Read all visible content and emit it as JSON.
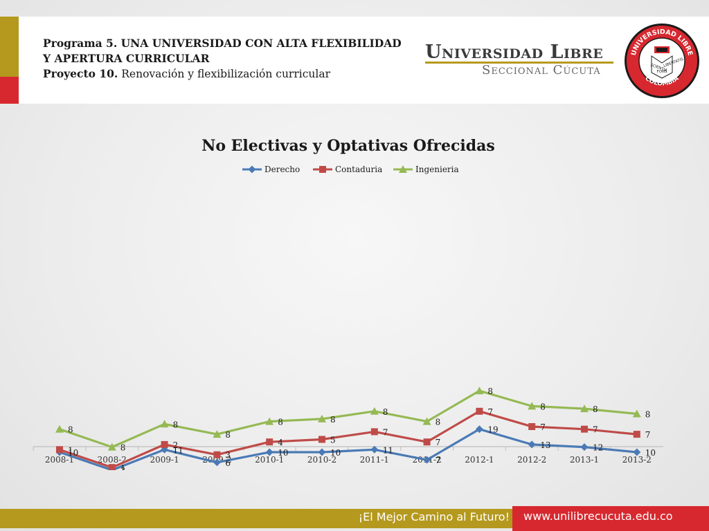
{
  "header": {
    "line1": "Programa 5. UNA UNIVERSIDAD CON ALTA FLEXIBILIDAD",
    "line2": "Y APERTURA CURRICULAR",
    "line3_bold": "Proyecto 10.",
    "line3_rest": " Renovación y flexibilización curricular"
  },
  "logo": {
    "name": "Universidad Libre",
    "subtitle": "Seccional Cúcuta",
    "seal_top": "UNIVERSIDAD LIBRE",
    "seal_bottom": "COLOMBIA",
    "seal_left": "SCIENTIA",
    "seal_center": "FONS",
    "seal_right": "LIBERTATIS",
    "icon": "university-seal-icon"
  },
  "footer": {
    "slogan": "¡El Mejor Camino al Futuro!",
    "website": "www.unilibrecucuta.edu.co"
  },
  "colors": {
    "gold": "#b5991e",
    "red": "#d7282f",
    "derecho": "#4a7ab5",
    "contaduria": "#bf4b48",
    "ingenieria": "#95b954"
  },
  "chart_data": {
    "type": "line",
    "title": "No Electivas y Optativas Ofrecidas",
    "xlabel": "",
    "ylabel": "",
    "legend_position": "top",
    "grid": false,
    "stacked": true,
    "categories": [
      "2008-1",
      "2008-2",
      "2009-1",
      "2009-2",
      "2010-1",
      "2010-2",
      "2011-1",
      "2011-2",
      "2012-1",
      "2012-2",
      "2013-1",
      "2013-2"
    ],
    "series": [
      {
        "name": "Derecho",
        "marker": "diamond",
        "values": [
          10,
          3,
          11,
          6,
          10,
          10,
          11,
          7,
          19,
          13,
          12,
          10
        ]
      },
      {
        "name": "Contaduria",
        "marker": "square",
        "values": [
          1,
          1,
          2,
          3,
          4,
          5,
          7,
          7,
          7,
          7,
          7,
          7
        ]
      },
      {
        "name": "Ingenieria",
        "marker": "triangle",
        "values": [
          8,
          8,
          8,
          8,
          8,
          8,
          8,
          8,
          8,
          8,
          8,
          8
        ]
      }
    ]
  }
}
